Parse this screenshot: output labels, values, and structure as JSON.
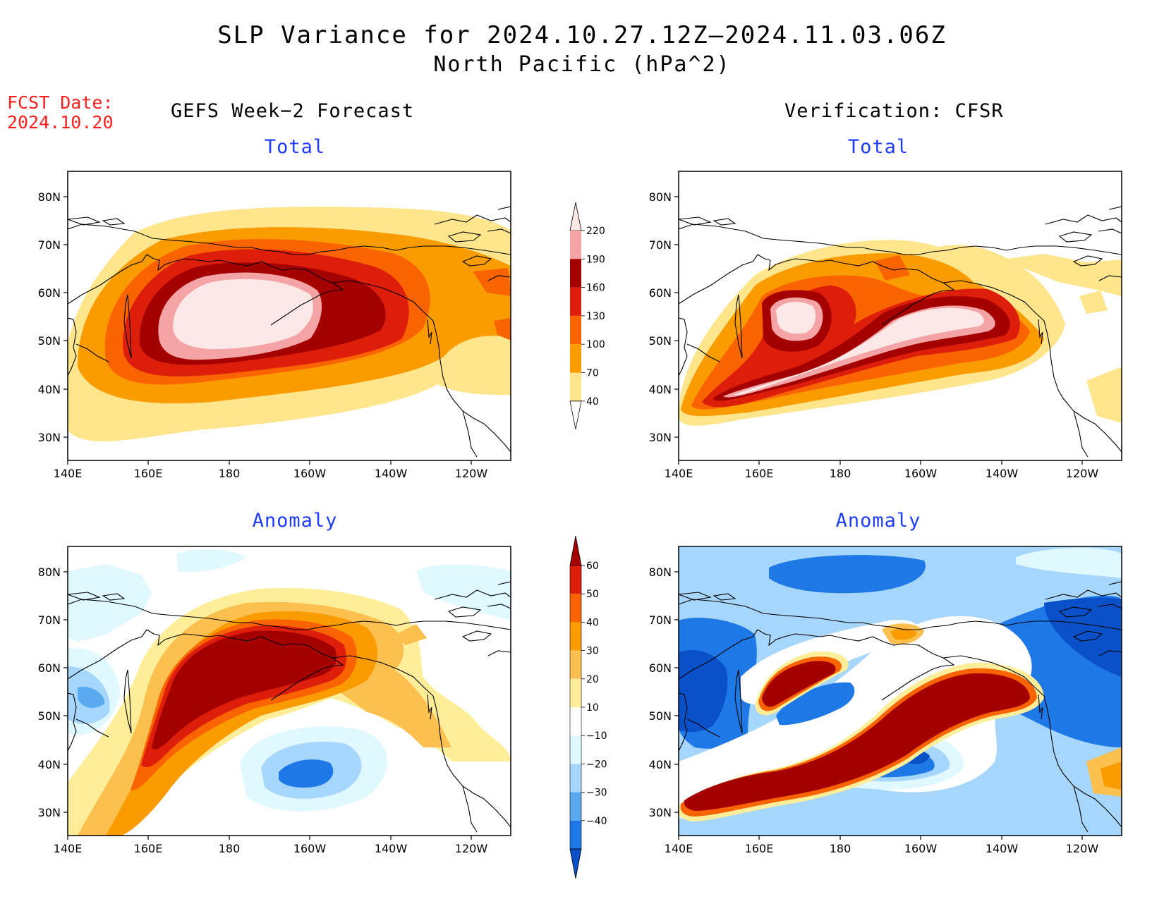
{
  "header": {
    "title_line1": "SLP Variance for 2024.10.27.12Z–2024.11.03.06Z",
    "title_line2": "North Pacific (hPa^2)",
    "fcst_label": "FCST Date:",
    "fcst_date": "2024.10.20",
    "left_column": "GEFS Week−2 Forecast",
    "right_column": "Verification: CFSR"
  },
  "panels": {
    "top_left_title": "Total",
    "top_right_title": "Total",
    "bottom_left_title": "Anomaly",
    "bottom_right_title": "Anomaly"
  },
  "axes": {
    "lat_labels": [
      "80N",
      "70N",
      "60N",
      "50N",
      "40N",
      "30N"
    ],
    "lon_labels": [
      "140E",
      "160E",
      "180",
      "160W",
      "140W",
      "120W"
    ]
  },
  "colorbar_total": {
    "levels": [
      "220",
      "190",
      "160",
      "130",
      "100",
      "70",
      "40"
    ],
    "colors": [
      "#fde8e8",
      "#f4a4a4",
      "#a50000",
      "#dc1e0a",
      "#fa6400",
      "#fa9b00",
      "#ffe68c"
    ]
  },
  "colorbar_anomaly": {
    "levels": [
      "60",
      "50",
      "40",
      "30",
      "20",
      "10",
      "−10",
      "−20",
      "−30",
      "−40"
    ],
    "colors": [
      "#a50000",
      "#dc1e0a",
      "#fa6400",
      "#fa9b00",
      "#fbc050",
      "#ffee99",
      "#ffffff",
      "#e0f8ff",
      "#a6d6fb",
      "#5aaaf0",
      "#1e78e6",
      "#0a50c8"
    ]
  }
}
